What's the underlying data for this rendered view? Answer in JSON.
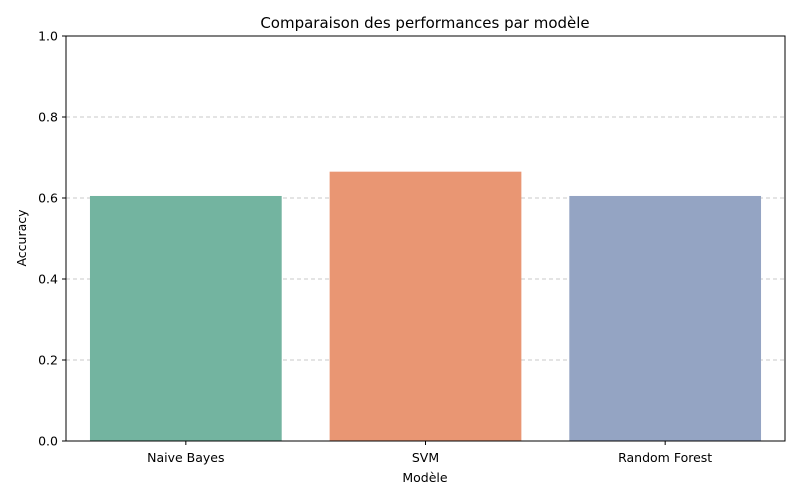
{
  "chart_data": {
    "type": "bar",
    "title": "Comparaison des performances par modèle",
    "xlabel": "Modèle",
    "ylabel": "Accuracy",
    "categories": [
      "Naive Bayes",
      "SVM",
      "Random Forest"
    ],
    "values": [
      0.605,
      0.665,
      0.605
    ],
    "colors": [
      "#73b4a0",
      "#e99673",
      "#94a4c3"
    ],
    "ylim": [
      0,
      1
    ],
    "yticks": [
      "0.0",
      "0.2",
      "0.4",
      "0.6",
      "0.8",
      "1.0"
    ],
    "grid": "y-dashed",
    "grid_color": "#c8c8c8",
    "legend": "none"
  }
}
